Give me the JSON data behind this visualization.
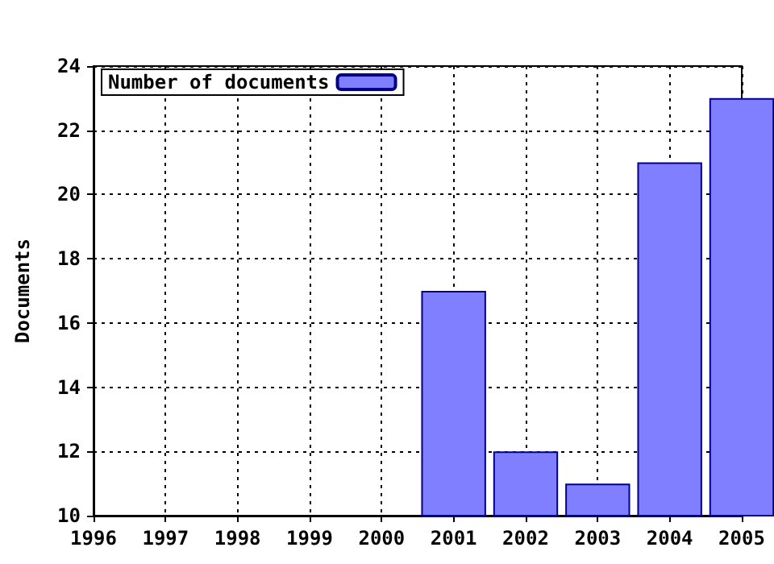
{
  "chart_data": {
    "type": "bar",
    "ylabel": "Documents",
    "x": [
      2001,
      2002,
      2003,
      2004,
      2005
    ],
    "series": [
      {
        "name": "Number of documents",
        "color": "#7f7fff",
        "values": [
          17,
          12,
          11,
          21,
          23
        ]
      }
    ],
    "xlim": [
      1996,
      2005
    ],
    "xticks": [
      1996,
      1997,
      1998,
      1999,
      2000,
      2001,
      2002,
      2003,
      2004,
      2005
    ],
    "ylim": [
      10,
      24
    ],
    "yticks": [
      10,
      12,
      14,
      16,
      18,
      20,
      22,
      24
    ],
    "grid": true,
    "legend": "top left"
  }
}
